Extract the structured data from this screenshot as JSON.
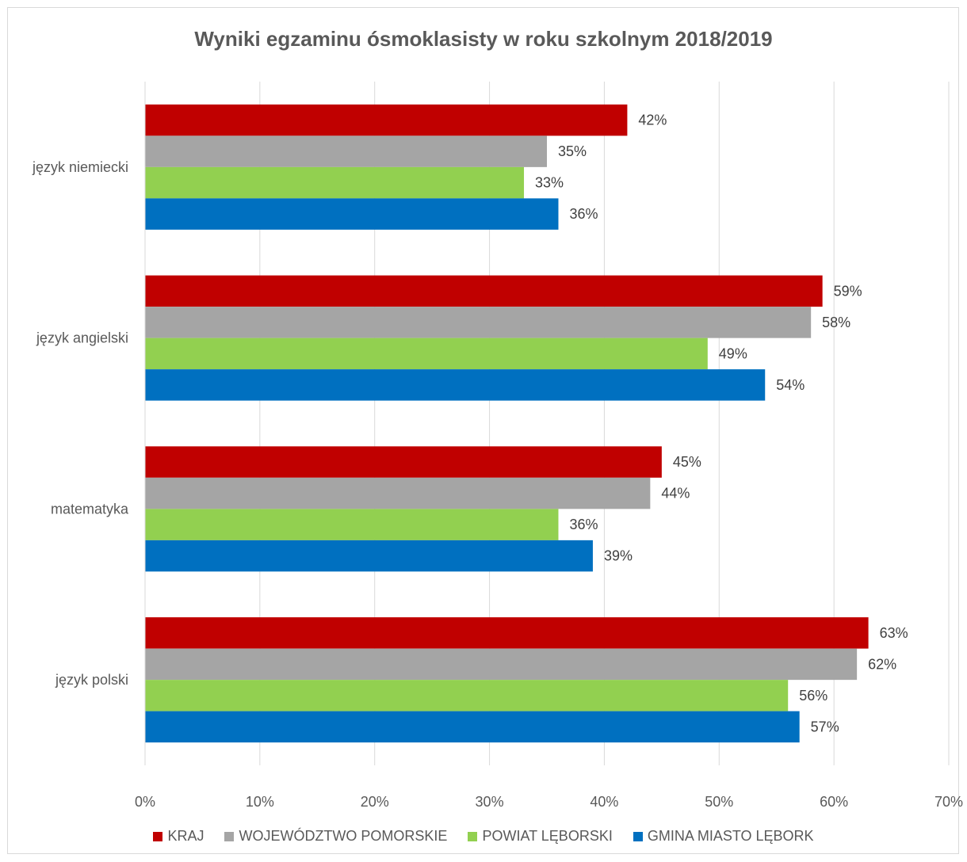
{
  "chart_data": {
    "type": "bar",
    "orientation": "horizontal",
    "title": "Wyniki egzaminu ósmoklasisty w roku szkolnym 2018/2019",
    "categories": [
      "język niemiecki",
      "język angielski",
      "matematyka",
      "język polski"
    ],
    "series": [
      {
        "name": "KRAJ",
        "color": "#c00000",
        "values": [
          42,
          59,
          45,
          63
        ]
      },
      {
        "name": "WOJEWÓDZTWO POMORSKIE",
        "color": "#a5a5a5",
        "values": [
          35,
          58,
          44,
          62
        ]
      },
      {
        "name": "POWIAT LĘBORSKI",
        "color": "#92d050",
        "values": [
          33,
          49,
          36,
          56
        ]
      },
      {
        "name": "GMINA MIASTO LĘBORK",
        "color": "#0070c0",
        "values": [
          36,
          54,
          39,
          57
        ]
      }
    ],
    "xlim": [
      0,
      70
    ],
    "xticks": [
      "0%",
      "10%",
      "20%",
      "30%",
      "40%",
      "50%",
      "60%",
      "70%"
    ],
    "value_suffix": "%",
    "grid": true,
    "legend_position": "bottom"
  }
}
